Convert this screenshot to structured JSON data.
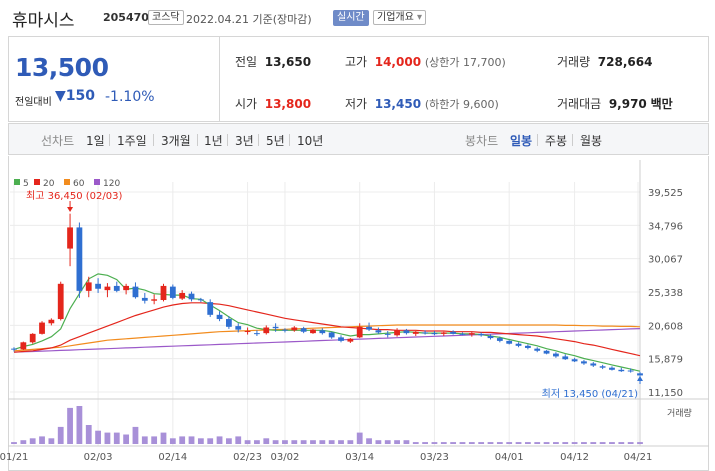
{
  "header": {
    "stock_name": "휴마시스",
    "stock_code": "205470",
    "market_badge": "코스닥",
    "date_text": "2022.04.21 기준(장마감)",
    "realtime_button": "실시간",
    "company_button": "기업개요",
    "company_caret": "▾"
  },
  "summary": {
    "price": "13,500",
    "change_label": "전일대비",
    "change_arrow": "▼",
    "change_value": "150",
    "change_pct": "-1.10%",
    "prev_close_label": "전일",
    "prev_close": "13,650",
    "high_label": "고가",
    "high": "14,000",
    "upper_limit": "(상한가 17,700)",
    "volume_label": "거래량",
    "volume": "728,664",
    "open_label": "시가",
    "open": "13,800",
    "low_label": "저가",
    "low": "13,450",
    "lower_limit": "(하한가 9,600)",
    "amount_label": "거래대금",
    "amount": "9,970",
    "amount_unit": "백만"
  },
  "tabs": {
    "line_label": "선차트",
    "line_periods": [
      "1일",
      "1주일",
      "3개월",
      "1년",
      "3년",
      "5년",
      "10년"
    ],
    "candle_label": "봉차트",
    "candle_periods": [
      "일봉",
      "주봉",
      "월봉"
    ],
    "selected_candle": "일봉"
  },
  "colors": {
    "up": "#e4261c",
    "down": "#2f6fd1",
    "ma5": "#4caf50",
    "ma20": "#e4261c",
    "ma60": "#f28c1e",
    "ma120": "#9b59c9",
    "volume": "#a890d8"
  },
  "chart_data": {
    "type": "candlestick",
    "legend": [
      "5",
      "20",
      "60",
      "120"
    ],
    "y_ticks": [
      "39,525",
      "34,796",
      "30,067",
      "25,338",
      "20,608",
      "15,879",
      "11,150"
    ],
    "ylim": [
      11150,
      39525
    ],
    "x_ticks": [
      "01/21",
      "02/03",
      "02/14",
      "02/23",
      "03/02",
      "03/14",
      "03/23",
      "04/01",
      "04/12",
      "04/21"
    ],
    "volume_label": "거래량",
    "annotations": {
      "high": "최고 36,450 (02/03)",
      "low": "최저 13,450 (04/21)"
    },
    "candles": [
      [
        17300,
        17500,
        16900,
        17200
      ],
      [
        17200,
        18300,
        17100,
        18200
      ],
      [
        18200,
        19500,
        18000,
        19400
      ],
      [
        19400,
        21200,
        19300,
        21000
      ],
      [
        20900,
        21600,
        20600,
        21400
      ],
      [
        21500,
        26800,
        21300,
        26500
      ],
      [
        31500,
        36450,
        29000,
        34500
      ],
      [
        34500,
        35200,
        24500,
        25500
      ],
      [
        25500,
        27500,
        24600,
        26700
      ],
      [
        26500,
        27300,
        25200,
        25800
      ],
      [
        25600,
        26600,
        24600,
        26100
      ],
      [
        26200,
        26800,
        25300,
        25500
      ],
      [
        25600,
        26500,
        25000,
        26200
      ],
      [
        26100,
        26700,
        24400,
        24600
      ],
      [
        24500,
        25200,
        23700,
        24100
      ],
      [
        24100,
        25000,
        23600,
        24300
      ],
      [
        24200,
        26500,
        24000,
        26200
      ],
      [
        26100,
        26400,
        24300,
        24500
      ],
      [
        24400,
        25600,
        24200,
        25200
      ],
      [
        25100,
        25400,
        24000,
        24300
      ],
      [
        24300,
        24500,
        23900,
        24200
      ],
      [
        23900,
        24300,
        21800,
        22100
      ],
      [
        22100,
        22600,
        21200,
        21500
      ],
      [
        21500,
        21900,
        20100,
        20400
      ],
      [
        20500,
        20900,
        19600,
        20000
      ],
      [
        19800,
        20300,
        19300,
        19800
      ],
      [
        19500,
        19900,
        19100,
        19400
      ],
      [
        19500,
        20600,
        19300,
        20300
      ],
      [
        20400,
        20900,
        19700,
        20200
      ],
      [
        20000,
        20200,
        19600,
        19900
      ],
      [
        19900,
        20500,
        19700,
        20300
      ],
      [
        20200,
        20400,
        19500,
        19700
      ],
      [
        19500,
        20100,
        19400,
        20000
      ],
      [
        19900,
        20200,
        19300,
        19500
      ],
      [
        19600,
        19700,
        18700,
        18900
      ],
      [
        18900,
        19200,
        18200,
        18400
      ],
      [
        18300,
        18800,
        18100,
        18700
      ],
      [
        18900,
        20900,
        18800,
        20400
      ],
      [
        20400,
        21000,
        19800,
        20000
      ],
      [
        19900,
        20300,
        19400,
        19600
      ],
      [
        19400,
        19800,
        18900,
        19300
      ],
      [
        19200,
        20200,
        19000,
        19900
      ],
      [
        19900,
        20100,
        19300,
        19500
      ],
      [
        19400,
        19800,
        19100,
        19700
      ],
      [
        19600,
        19900,
        19300,
        19500
      ],
      [
        19500,
        19800,
        19200,
        19400
      ],
      [
        19400,
        19700,
        19100,
        19600
      ],
      [
        19700,
        19900,
        19300,
        19400
      ],
      [
        19400,
        19600,
        19200,
        19300
      ],
      [
        19300,
        19700,
        19000,
        19500
      ],
      [
        19400,
        19600,
        19000,
        19200
      ],
      [
        19100,
        19300,
        18600,
        18800
      ],
      [
        18800,
        19000,
        18200,
        18400
      ],
      [
        18400,
        18500,
        17900,
        18000
      ],
      [
        18000,
        18200,
        17500,
        17700
      ],
      [
        17700,
        17900,
        17200,
        17400
      ],
      [
        17300,
        17500,
        16800,
        17000
      ],
      [
        17000,
        17100,
        16500,
        16600
      ],
      [
        16600,
        16800,
        16000,
        16200
      ],
      [
        16200,
        16500,
        15700,
        15800
      ],
      [
        15800,
        16000,
        15400,
        15500
      ],
      [
        15500,
        15700,
        15000,
        15200
      ],
      [
        15200,
        15400,
        14700,
        14900
      ],
      [
        14800,
        15000,
        14400,
        14600
      ],
      [
        14600,
        14800,
        14200,
        14300
      ],
      [
        14300,
        14600,
        14000,
        14100
      ],
      [
        14200,
        14500,
        13900,
        14100
      ],
      [
        13800,
        14000,
        13450,
        13500
      ]
    ],
    "ma5": [
      17200,
      17600,
      17900,
      18400,
      19000,
      20100,
      23000,
      25100,
      27200,
      27900,
      27700,
      27100,
      25700,
      25900,
      25600,
      25100,
      25000,
      24900,
      24900,
      24400,
      24300,
      23500,
      22700,
      21800,
      21000,
      20700,
      20200,
      20000,
      19900,
      19900,
      19900,
      19900,
      19900,
      19900,
      19700,
      19400,
      19100,
      19300,
      19300,
      19400,
      19500,
      19600,
      19700,
      19600,
      19500,
      19500,
      19500,
      19500,
      19400,
      19400,
      19300,
      19100,
      18900,
      18600,
      18300,
      18000,
      17700,
      17300,
      17000,
      16600,
      16300,
      15900,
      15600,
      15300,
      15000,
      14700,
      14400,
      14100
    ],
    "ma20": [
      16800,
      16900,
      17000,
      17200,
      17400,
      17800,
      18500,
      19000,
      19500,
      20000,
      20500,
      21000,
      21500,
      22000,
      22400,
      22800,
      23200,
      23500,
      23700,
      23800,
      23800,
      23700,
      23600,
      23400,
      23100,
      22800,
      22500,
      22200,
      21900,
      21600,
      21400,
      21200,
      21000,
      20800,
      20600,
      20400,
      20300,
      20200,
      20100,
      20000,
      20000,
      19900,
      19900,
      19900,
      19800,
      19800,
      19800,
      19700,
      19700,
      19700,
      19600,
      19600,
      19500,
      19400,
      19300,
      19200,
      19100,
      18900,
      18700,
      18500,
      18300,
      18000,
      17800,
      17500,
      17200,
      16900,
      16600,
      16300
    ],
    "ma60": [
      17000,
      17100,
      17200,
      17300,
      17400,
      17500,
      17700,
      17900,
      18100,
      18300,
      18500,
      18600,
      18700,
      18800,
      18900,
      19000,
      19100,
      19200,
      19300,
      19400,
      19500,
      19600,
      19700,
      19750,
      19800,
      19850,
      19900,
      19950,
      20000,
      20050,
      20100,
      20150,
      20200,
      20250,
      20300,
      20350,
      20400,
      20450,
      20500,
      20550,
      20600,
      20650,
      20650,
      20650,
      20650,
      20650,
      20650,
      20650,
      20650,
      20650,
      20650,
      20650,
      20650,
      20650,
      20650,
      20650,
      20650,
      20650,
      20650,
      20600,
      20600,
      20550,
      20550,
      20500,
      20500,
      20450,
      20450,
      20400
    ],
    "ma120": [
      16800,
      16850,
      16900,
      16950,
      17000,
      17050,
      17100,
      17150,
      17200,
      17250,
      17300,
      17350,
      17400,
      17450,
      17500,
      17550,
      17600,
      17650,
      17700,
      17750,
      17800,
      17850,
      17900,
      17950,
      18000,
      18050,
      18100,
      18150,
      18200,
      18250,
      18300,
      18350,
      18400,
      18450,
      18500,
      18550,
      18600,
      18650,
      18700,
      18750,
      18800,
      18850,
      18900,
      18950,
      19000,
      19050,
      19100,
      19150,
      19200,
      19250,
      19300,
      19350,
      19400,
      19450,
      19500,
      19550,
      19600,
      19650,
      19700,
      19750,
      19800,
      19850,
      19900,
      19950,
      20000,
      20050,
      20100,
      20150
    ],
    "volume": [
      0.05,
      0.1,
      0.15,
      0.2,
      0.15,
      0.45,
      0.95,
      1.0,
      0.5,
      0.35,
      0.3,
      0.3,
      0.25,
      0.45,
      0.2,
      0.2,
      0.3,
      0.15,
      0.2,
      0.2,
      0.15,
      0.15,
      0.2,
      0.15,
      0.2,
      0.1,
      0.1,
      0.15,
      0.1,
      0.1,
      0.1,
      0.1,
      0.1,
      0.1,
      0.1,
      0.1,
      0.1,
      0.3,
      0.15,
      0.1,
      0.1,
      0.1,
      0.1,
      0.05,
      0.05,
      0.05,
      0.05,
      0.05,
      0.05,
      0.05,
      0.05,
      0.05,
      0.05,
      0.05,
      0.05,
      0.05,
      0.05,
      0.05,
      0.05,
      0.05,
      0.05,
      0.05,
      0.05,
      0.05,
      0.05,
      0.05,
      0.05,
      0.05
    ]
  }
}
